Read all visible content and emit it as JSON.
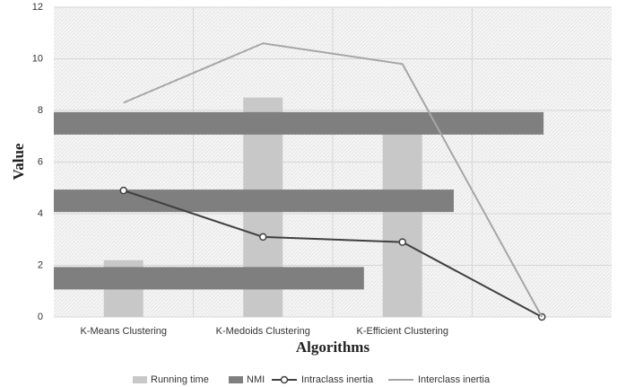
{
  "chart_data": {
    "type": "combo",
    "x_label": "Algorithms",
    "y_label": "Value",
    "categories": [
      "K-Means Clustering",
      "K-Medoids Clustering",
      "K-Efficient Clustering",
      null
    ],
    "ylim": [
      0,
      12
    ],
    "yticks": [
      0,
      2,
      4,
      6,
      8,
      10,
      12
    ],
    "x2lim": [
      0,
      1
    ],
    "grid": true,
    "legend": "bottom",
    "series": [
      {
        "name": "Running time",
        "kind": "bar",
        "color": "#c8c8c8",
        "values": [
          2.2,
          8.5,
          7.1,
          0
        ]
      },
      {
        "name": "NMI",
        "kind": "hbar",
        "axis": "x2",
        "color": "#7f7f7f",
        "values": [
          0.556,
          0.717,
          0.878,
          0
        ]
      },
      {
        "name": "Intraclass inertia",
        "kind": "line",
        "color": "#404040",
        "markers": true,
        "values": [
          4.9,
          3.1,
          2.9,
          0
        ]
      },
      {
        "name": "Interclass inertia",
        "kind": "line",
        "color": "#a6a6a6",
        "markers": false,
        "values": [
          8.3,
          10.6,
          9.8,
          0
        ]
      }
    ]
  }
}
